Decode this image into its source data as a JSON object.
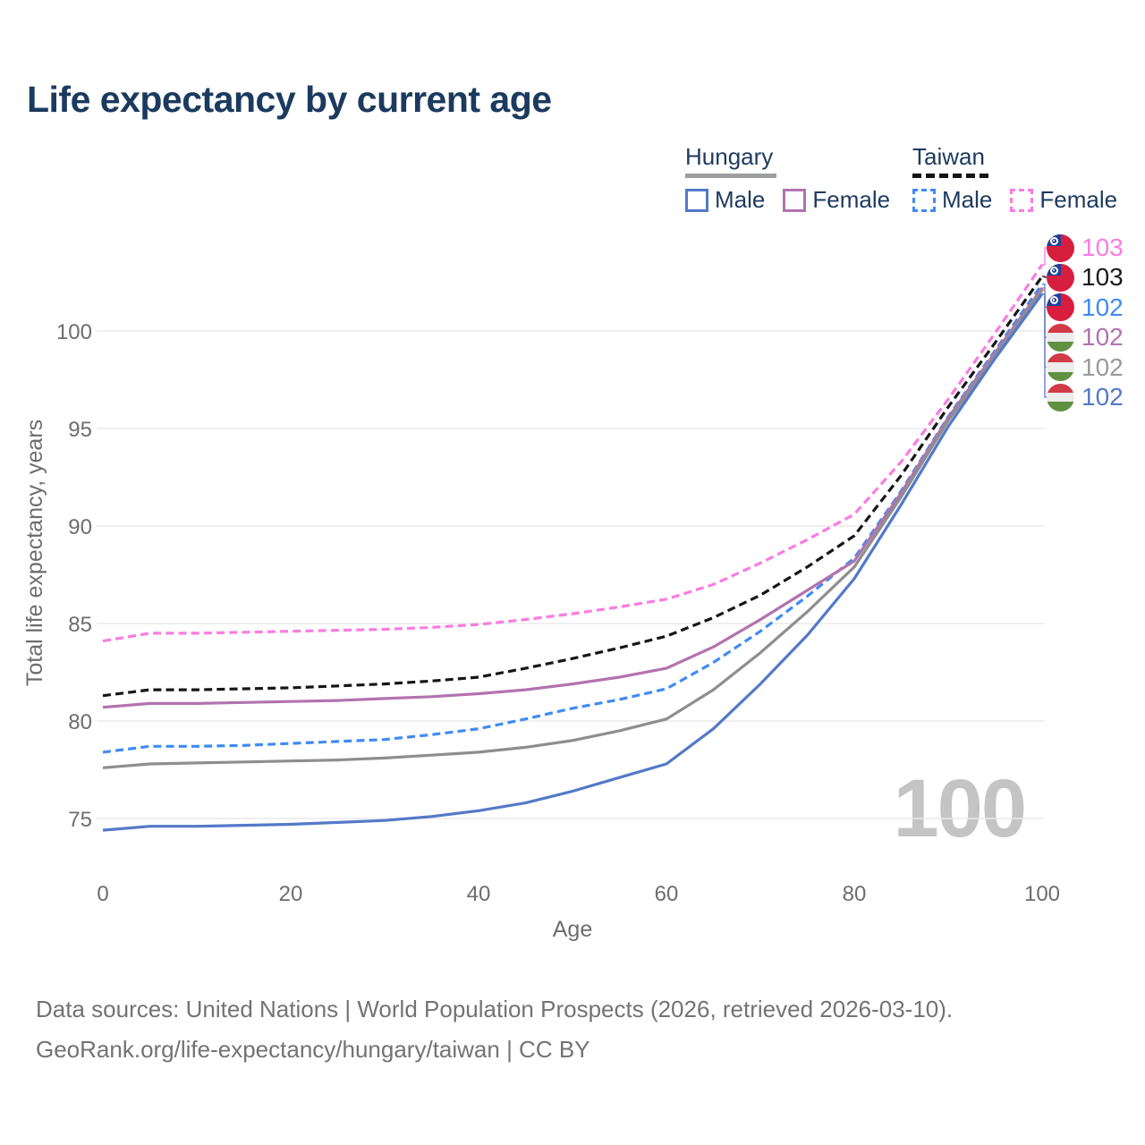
{
  "title": "Life expectancy by current age",
  "legend": {
    "groups": [
      {
        "id": "hungary",
        "name": "Hungary",
        "line_style": "solid",
        "underline_color": "#9e9e9e",
        "items": [
          {
            "id": "male",
            "label": "Male",
            "color": "#5379c8"
          },
          {
            "id": "female",
            "label": "Female",
            "color": "#b273ae"
          }
        ]
      },
      {
        "id": "taiwan",
        "name": "Taiwan",
        "line_style": "dashed",
        "underline_color": "#141414",
        "items": [
          {
            "id": "male",
            "label": "Male",
            "color": "#3f8bf2"
          },
          {
            "id": "female",
            "label": "Female",
            "color": "#fb7ce1"
          }
        ]
      }
    ]
  },
  "chart_data": {
    "type": "line",
    "title": "Life expectancy by current age",
    "xlabel": "Age",
    "ylabel": "Total life expectancy, years",
    "xlim": [
      0,
      100
    ],
    "ylim": [
      73,
      104.5
    ],
    "xticks": [
      0,
      20,
      40,
      60,
      80,
      100
    ],
    "yticks": [
      75,
      80,
      85,
      90,
      95,
      100
    ],
    "grid": true,
    "legend_position": "top-right",
    "x": [
      0,
      5,
      10,
      15,
      20,
      25,
      30,
      35,
      40,
      45,
      50,
      55,
      60,
      65,
      70,
      75,
      80,
      85,
      90,
      95,
      100
    ],
    "series": [
      {
        "name": "Taiwan Female",
        "country": "Taiwan",
        "sex": "Female",
        "style": "dashed",
        "color": "#fb7ce1",
        "values": [
          84.1,
          84.5,
          84.5,
          84.55,
          84.6,
          84.65,
          84.7,
          84.8,
          84.95,
          85.2,
          85.5,
          85.85,
          86.25,
          87.0,
          88.1,
          89.3,
          90.6,
          93.3,
          96.5,
          99.9,
          103.4
        ]
      },
      {
        "name": "Taiwan Both sexes",
        "country": "Taiwan",
        "sex": "Both",
        "style": "dashed",
        "color": "#161616",
        "values": [
          81.3,
          81.6,
          81.6,
          81.65,
          81.7,
          81.8,
          81.9,
          82.05,
          82.25,
          82.7,
          83.2,
          83.75,
          84.35,
          85.3,
          86.45,
          87.9,
          89.5,
          92.6,
          96.1,
          99.4,
          102.8
        ]
      },
      {
        "name": "Taiwan Male",
        "country": "Taiwan",
        "sex": "Male",
        "style": "dashed",
        "color": "#3f8bf2",
        "values": [
          78.4,
          78.7,
          78.7,
          78.75,
          78.85,
          78.95,
          79.05,
          79.3,
          79.6,
          80.1,
          80.65,
          81.1,
          81.65,
          83.0,
          84.6,
          86.4,
          88.35,
          91.8,
          95.6,
          99.0,
          102.4
        ]
      },
      {
        "name": "Hungary Female",
        "country": "Hungary",
        "sex": "Female",
        "style": "solid",
        "color": "#b273ae",
        "values": [
          80.7,
          80.9,
          80.9,
          80.95,
          81.0,
          81.05,
          81.15,
          81.25,
          81.4,
          81.6,
          81.9,
          82.25,
          82.7,
          83.8,
          85.2,
          86.7,
          88.2,
          91.7,
          95.55,
          98.9,
          102.2
        ]
      },
      {
        "name": "Hungary Both sexes",
        "country": "Hungary",
        "sex": "Both",
        "style": "solid",
        "color": "#8e8e8e",
        "values": [
          77.6,
          77.8,
          77.85,
          77.9,
          77.95,
          78.0,
          78.1,
          78.25,
          78.4,
          78.65,
          79.0,
          79.5,
          80.1,
          81.6,
          83.5,
          85.6,
          87.9,
          91.5,
          95.4,
          98.75,
          102.1
        ]
      },
      {
        "name": "Hungary Male",
        "country": "Hungary",
        "sex": "Male",
        "style": "solid",
        "color": "#5379c8",
        "values": [
          74.4,
          74.6,
          74.6,
          74.65,
          74.7,
          74.8,
          74.9,
          75.1,
          75.4,
          75.8,
          76.4,
          77.1,
          77.8,
          79.6,
          81.9,
          84.4,
          87.3,
          91.1,
          95.1,
          98.6,
          101.9
        ]
      }
    ]
  },
  "end_labels": [
    {
      "flag": "taiwan",
      "value": "103",
      "color": "#fb7ce1"
    },
    {
      "flag": "taiwan",
      "value": "103",
      "color": "#1a1a1a"
    },
    {
      "flag": "taiwan",
      "value": "102",
      "color": "#3f8bf2"
    },
    {
      "flag": "hungary",
      "value": "102",
      "color": "#b273ae"
    },
    {
      "flag": "hungary",
      "value": "102",
      "color": "#9a9a9a"
    },
    {
      "flag": "hungary",
      "value": "102",
      "color": "#5379c8"
    }
  ],
  "watermark": "100",
  "footer": {
    "line1": "Data sources: United Nations | World Population Prospects (2026, retrieved 2026-03-10).",
    "line2": "GeoRank.org/life-expectancy/hungary/taiwan | CC BY"
  }
}
